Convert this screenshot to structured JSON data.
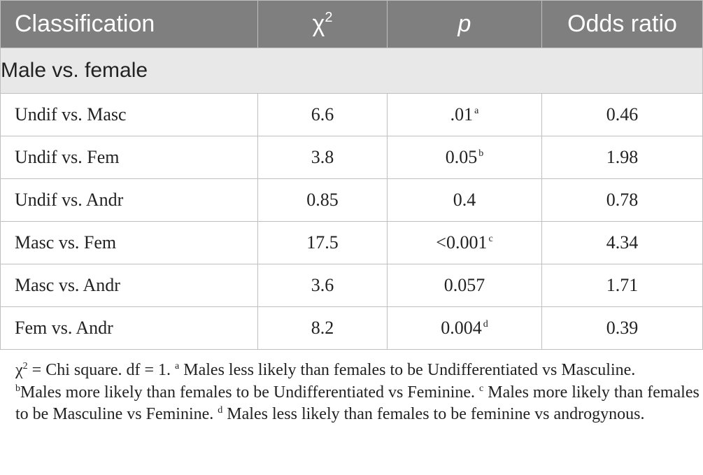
{
  "table": {
    "headers": {
      "classification": "Classification",
      "chi_base": "χ",
      "chi_sup": "2",
      "p": "p",
      "odds": "Odds ratio"
    },
    "section": "Male vs. female",
    "rows": [
      {
        "label": "Undif vs. Masc",
        "chi": "6.6",
        "p": ".01",
        "p_sup": "a",
        "odds": "0.46"
      },
      {
        "label": "Undif vs. Fem",
        "chi": "3.8",
        "p": "0.05",
        "p_sup": "b",
        "odds": "1.98"
      },
      {
        "label": "Undif vs. Andr",
        "chi": "0.85",
        "p": "0.4",
        "p_sup": "",
        "odds": "0.78"
      },
      {
        "label": "Masc vs. Fem",
        "chi": "17.5",
        "p": "<0.001",
        "p_sup": "c",
        "odds": "4.34"
      },
      {
        "label": "Masc vs. Andr",
        "chi": "3.6",
        "p": "0.057",
        "p_sup": "",
        "odds": "1.71"
      },
      {
        "label": "Fem vs. Andr",
        "chi": "8.2",
        "p": "0.004",
        "p_sup": "d",
        "odds": "0.39"
      }
    ]
  },
  "footnote": {
    "chi_symbol": "χ",
    "chi_sup": "2",
    "intro": " = Chi square. df = 1. ",
    "a_mark": "a",
    "a_text": " Males less likely than females to be Undifferentiated vs Masculine.",
    "b_mark": "b",
    "b_text": "Males more likely than females to be Undifferentiated vs Feminine. ",
    "c_mark": "c",
    "c_text": " Males more likely than females to be Masculine vs Feminine. ",
    "d_mark": "d",
    "d_text": " Males less likely than females to be feminine vs androgynous."
  }
}
